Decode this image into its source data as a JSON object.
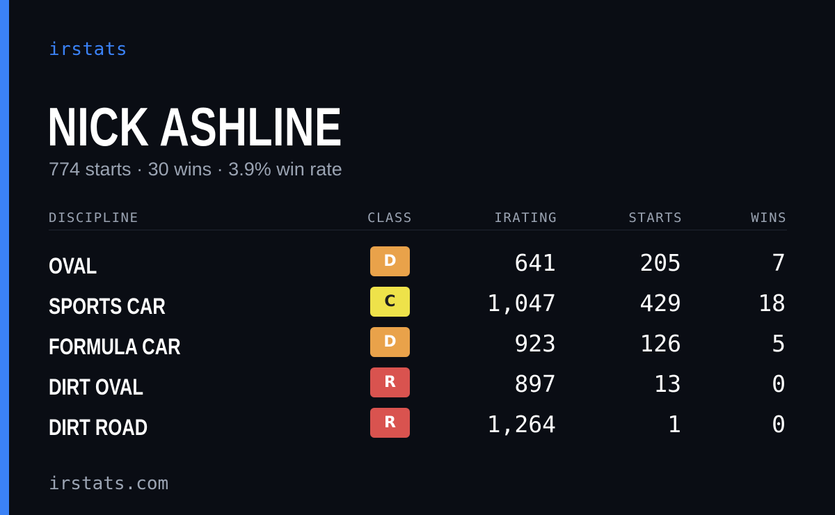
{
  "brand": "irstats",
  "driver": {
    "name": "NICK ASHLINE"
  },
  "summary": {
    "starts": "774 starts",
    "wins": "30 wins",
    "win_rate": "3.9% win rate",
    "separator": "·"
  },
  "table": {
    "headers": {
      "discipline": "DISCIPLINE",
      "class": "CLASS",
      "irating": "IRATING",
      "starts": "STARTS",
      "wins": "WINS"
    },
    "rows": [
      {
        "discipline": "OVAL",
        "class": "D",
        "irating": "641",
        "starts": "205",
        "wins": "7"
      },
      {
        "discipline": "SPORTS CAR",
        "class": "C",
        "irating": "1,047",
        "starts": "429",
        "wins": "18"
      },
      {
        "discipline": "FORMULA CAR",
        "class": "D",
        "irating": "923",
        "starts": "126",
        "wins": "5"
      },
      {
        "discipline": "DIRT OVAL",
        "class": "R",
        "irating": "897",
        "starts": "13",
        "wins": "0"
      },
      {
        "discipline": "DIRT ROAD",
        "class": "R",
        "irating": "1,264",
        "starts": "1",
        "wins": "0"
      }
    ]
  },
  "class_colors": {
    "D": {
      "bg": "#e9a24a",
      "fg": "#ffffff"
    },
    "C": {
      "bg": "#eee24a",
      "fg": "#1f1f1f"
    },
    "R": {
      "bg": "#d9534f",
      "fg": "#ffffff"
    }
  },
  "colors": {
    "accent": "#3b82f6",
    "background": "#0a0d14",
    "muted": "#9aa3b2"
  },
  "footer": "irstats.com"
}
